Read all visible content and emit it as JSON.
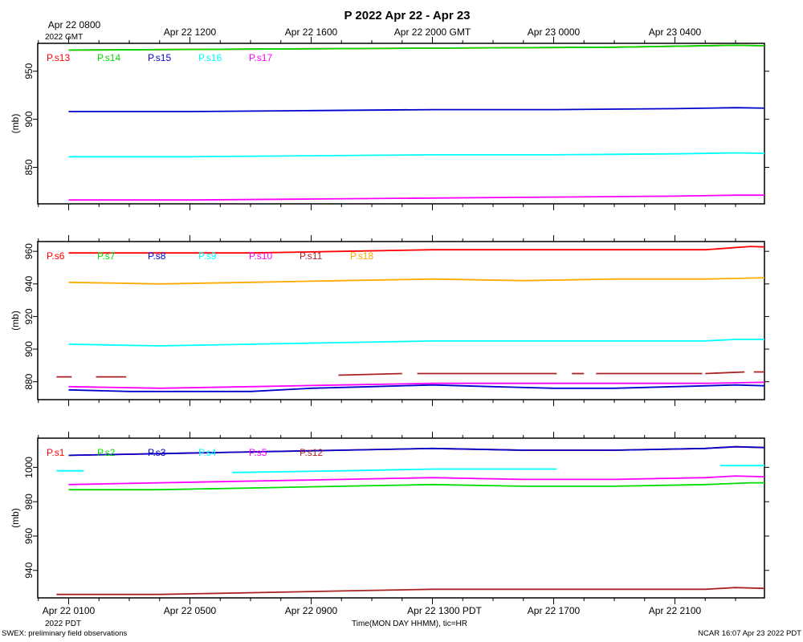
{
  "header": {
    "title": "P 2022 Apr 22 - Apr 23",
    "gmt_ticks": [
      "Apr 22 0800",
      "Apr 22 1200",
      "Apr 22 1600",
      "Apr 22 2000 GMT",
      "Apr 23 0000",
      "Apr 23 0400"
    ],
    "gmt_year": "2022 GMT"
  },
  "footer": {
    "pdt_ticks": [
      "Apr 22 0100",
      "Apr 22 0500",
      "Apr 22 0900",
      "Apr 22 1300 PDT",
      "Apr 22 1700",
      "Apr 22 2100"
    ],
    "pdt_year": "2022 PDT",
    "xlabel": "Time(MON DAY HHMM), tic=HR",
    "left_note": "SWEX: preliminary field observations",
    "right_note": "NCAR 16:07 Apr 23 2022 PDT"
  },
  "chart_data": [
    {
      "type": "line",
      "ylabel": "(mb)",
      "ylim": [
        812,
        979
      ],
      "yticks": [
        850,
        900,
        950
      ],
      "x_hours_pdt_range": [
        0,
        24
      ],
      "series": [
        {
          "name": "P.s13",
          "color": "#ff0000",
          "x": [
            0,
            6,
            12,
            18,
            22,
            24
          ],
          "y": [
            972,
            973,
            974,
            975,
            977,
            976
          ]
        },
        {
          "name": "P.s14",
          "color": "#00dd00",
          "x": [
            0,
            6,
            12,
            18,
            22,
            24
          ],
          "y": [
            972,
            973,
            974,
            975,
            977,
            976
          ]
        },
        {
          "name": "P.s15",
          "color": "#0000cc",
          "x": [
            0,
            4,
            8,
            12,
            16,
            20,
            22,
            24
          ],
          "y": [
            908,
            908,
            909,
            910,
            910,
            911,
            912,
            911
          ]
        },
        {
          "name": "P.s16",
          "color": "#00ffff",
          "x": [
            0,
            4,
            8,
            12,
            16,
            20,
            22,
            24
          ],
          "y": [
            861,
            861,
            862,
            863,
            863,
            864,
            865,
            864
          ]
        },
        {
          "name": "P.s17",
          "color": "#ff00ff",
          "x": [
            0,
            4,
            8,
            12,
            16,
            20,
            22,
            24
          ],
          "y": [
            816,
            816,
            817,
            818,
            819,
            820,
            821,
            821
          ]
        }
      ]
    },
    {
      "type": "line",
      "ylabel": "(mb)",
      "ylim": [
        869,
        966
      ],
      "yticks": [
        880,
        900,
        920,
        940,
        960
      ],
      "x_hours_pdt_range": [
        0,
        24
      ],
      "series": [
        {
          "name": "P.s6",
          "color": "#ff0000",
          "x": [
            0,
            3,
            6,
            9,
            12,
            15,
            18,
            21,
            22.5,
            24
          ],
          "y": [
            959,
            959,
            959,
            960,
            961,
            961,
            961,
            961,
            963,
            962
          ]
        },
        {
          "name": "P.s7",
          "color": "#00dd00",
          "x": [],
          "y": []
        },
        {
          "name": "P.s8",
          "color": "#0000cc",
          "x": [
            0,
            2,
            4,
            6,
            8,
            10,
            12,
            14,
            16,
            18,
            20,
            22,
            24
          ],
          "y": [
            875,
            874,
            874,
            874,
            876,
            877,
            878,
            877,
            876,
            876,
            877,
            878,
            877
          ]
        },
        {
          "name": "P.s9",
          "color": "#00ffff",
          "x": [
            0,
            3,
            6,
            9,
            12,
            15,
            18,
            21,
            22,
            24
          ],
          "y": [
            903,
            902,
            903,
            904,
            905,
            905,
            905,
            905,
            906,
            906
          ]
        },
        {
          "name": "P.s10",
          "color": "#ff00ff",
          "x": [
            0,
            3,
            6,
            9,
            12,
            15,
            18,
            21,
            24
          ],
          "y": [
            877,
            876,
            877,
            878,
            879,
            879,
            879,
            879,
            880
          ]
        },
        {
          "name": "P.s11",
          "color": "#aa2222",
          "segments": [
            {
              "x": [
                -0.4,
                0.1
              ],
              "y": [
                883,
                883
              ]
            },
            {
              "x": [
                0.9,
                1.9
              ],
              "y": [
                883,
                883
              ]
            },
            {
              "x": [
                8.9,
                11
              ],
              "y": [
                884,
                885
              ]
            },
            {
              "x": [
                11.5,
                16.1
              ],
              "y": [
                885,
                885
              ]
            },
            {
              "x": [
                16.6,
                17
              ],
              "y": [
                885,
                885
              ]
            },
            {
              "x": [
                17.4,
                20.9
              ],
              "y": [
                885,
                885
              ]
            },
            {
              "x": [
                21,
                22.3
              ],
              "y": [
                885,
                886
              ]
            },
            {
              "x": [
                22.6,
                23.6
              ],
              "y": [
                886,
                886
              ]
            },
            {
              "x": [
                23.7,
                24
              ],
              "y": [
                886,
                886
              ]
            }
          ]
        },
        {
          "name": "P.s18",
          "color": "#ffaa00",
          "x": [
            0,
            3,
            6,
            9,
            12,
            15,
            18,
            21,
            23.5,
            24
          ],
          "y": [
            941,
            940,
            941,
            942,
            943,
            942,
            943,
            943,
            944,
            944
          ]
        }
      ]
    },
    {
      "type": "line",
      "ylabel": "(mb)",
      "ylim": [
        924,
        1017
      ],
      "yticks": [
        940,
        960,
        980,
        1000
      ],
      "x_hours_pdt_range": [
        0,
        24
      ],
      "series": [
        {
          "name": "P.s1",
          "color": "#ff0000",
          "x": [
            0,
            3,
            6,
            9,
            12,
            15,
            18,
            21,
            22,
            24
          ],
          "y": [
            1007,
            1008,
            1009,
            1010,
            1011,
            1010,
            1010,
            1011,
            1012,
            1011
          ]
        },
        {
          "name": "P.s2",
          "color": "#00dd00",
          "x": [
            0,
            3,
            6,
            9,
            12,
            15,
            18,
            21,
            22.5,
            24
          ],
          "y": [
            987,
            987,
            988,
            989,
            990,
            989,
            989,
            990,
            991,
            991
          ]
        },
        {
          "name": "P.s3",
          "color": "#0000cc",
          "x": [
            0,
            3,
            6,
            9,
            12,
            15,
            18,
            21,
            22,
            24
          ],
          "y": [
            1007,
            1008,
            1009,
            1010,
            1011,
            1010,
            1010,
            1011,
            1012,
            1011
          ]
        },
        {
          "name": "P.s4",
          "color": "#00ffff",
          "segments": [
            {
              "x": [
                -0.4,
                0.5
              ],
              "y": [
                998,
                998
              ]
            },
            {
              "x": [
                5.4,
                9,
                12,
                16.1
              ],
              "y": [
                997,
                998,
                999,
                999
              ]
            },
            {
              "x": [
                21.5,
                23,
                24
              ],
              "y": [
                1001,
                1001,
                1001
              ]
            }
          ]
        },
        {
          "name": "P.s5",
          "color": "#ff00ff",
          "x": [
            0,
            3,
            6,
            9,
            12,
            15,
            18,
            21,
            22,
            24
          ],
          "y": [
            990,
            991,
            992,
            993,
            994,
            993,
            993,
            994,
            995,
            994
          ]
        },
        {
          "name": "P.s12",
          "color": "#aa2222",
          "x": [
            -0.4,
            3,
            6,
            9,
            12,
            15,
            18,
            21,
            22,
            24
          ],
          "y": [
            926,
            926,
            927,
            928,
            929,
            929,
            929,
            929,
            930,
            929
          ]
        }
      ]
    }
  ]
}
